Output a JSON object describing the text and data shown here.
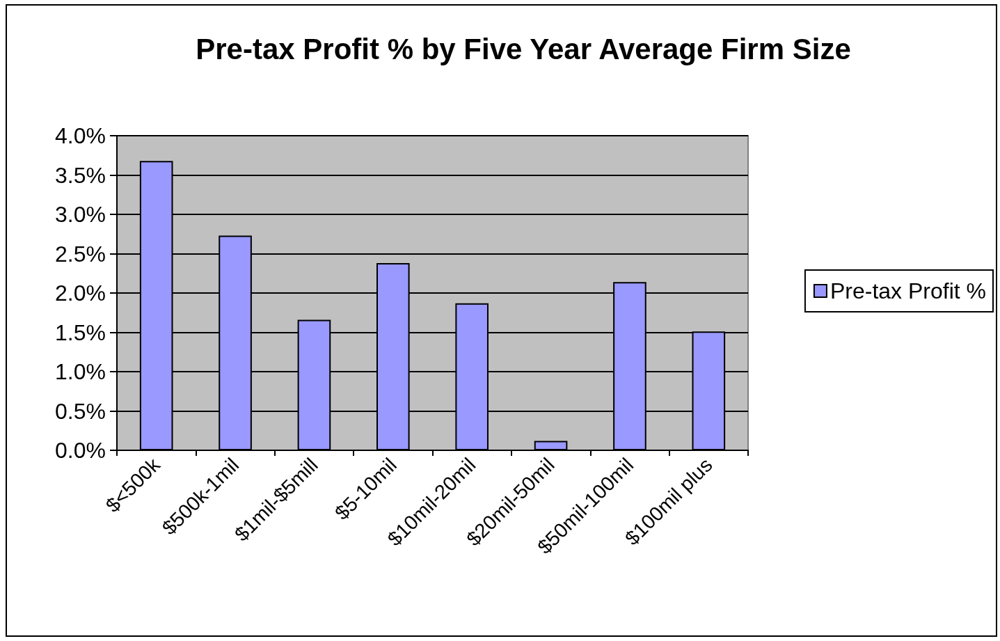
{
  "chart_data": {
    "type": "bar",
    "title": "Pre-tax Profit % by Five Year Average Firm Size",
    "categories": [
      "$<500k",
      "$500k-1mil",
      "$1mil-$5mill",
      "$5-10mil",
      "$10mil-20mil",
      "$20mil-50mil",
      "$50mil-100mil",
      "$100mil plus"
    ],
    "series": [
      {
        "name": "Pre-tax Profit %",
        "color": "#9999ff",
        "values": [
          3.68,
          2.73,
          1.66,
          2.38,
          1.87,
          0.12,
          2.14,
          1.51
        ]
      }
    ],
    "ylim": [
      0,
      4
    ],
    "yticks": [
      {
        "value": 0,
        "label": "0.0%"
      },
      {
        "value": 0.5,
        "label": "0.5%"
      },
      {
        "value": 1,
        "label": "1.0%"
      },
      {
        "value": 1.5,
        "label": "1.5%"
      },
      {
        "value": 2,
        "label": "2.0%"
      },
      {
        "value": 2.5,
        "label": "2.5%"
      },
      {
        "value": 3,
        "label": "3.0%"
      },
      {
        "value": 3.5,
        "label": "3.5%"
      },
      {
        "value": 4,
        "label": "4.0%"
      }
    ],
    "grid": "y",
    "legend": "right"
  }
}
